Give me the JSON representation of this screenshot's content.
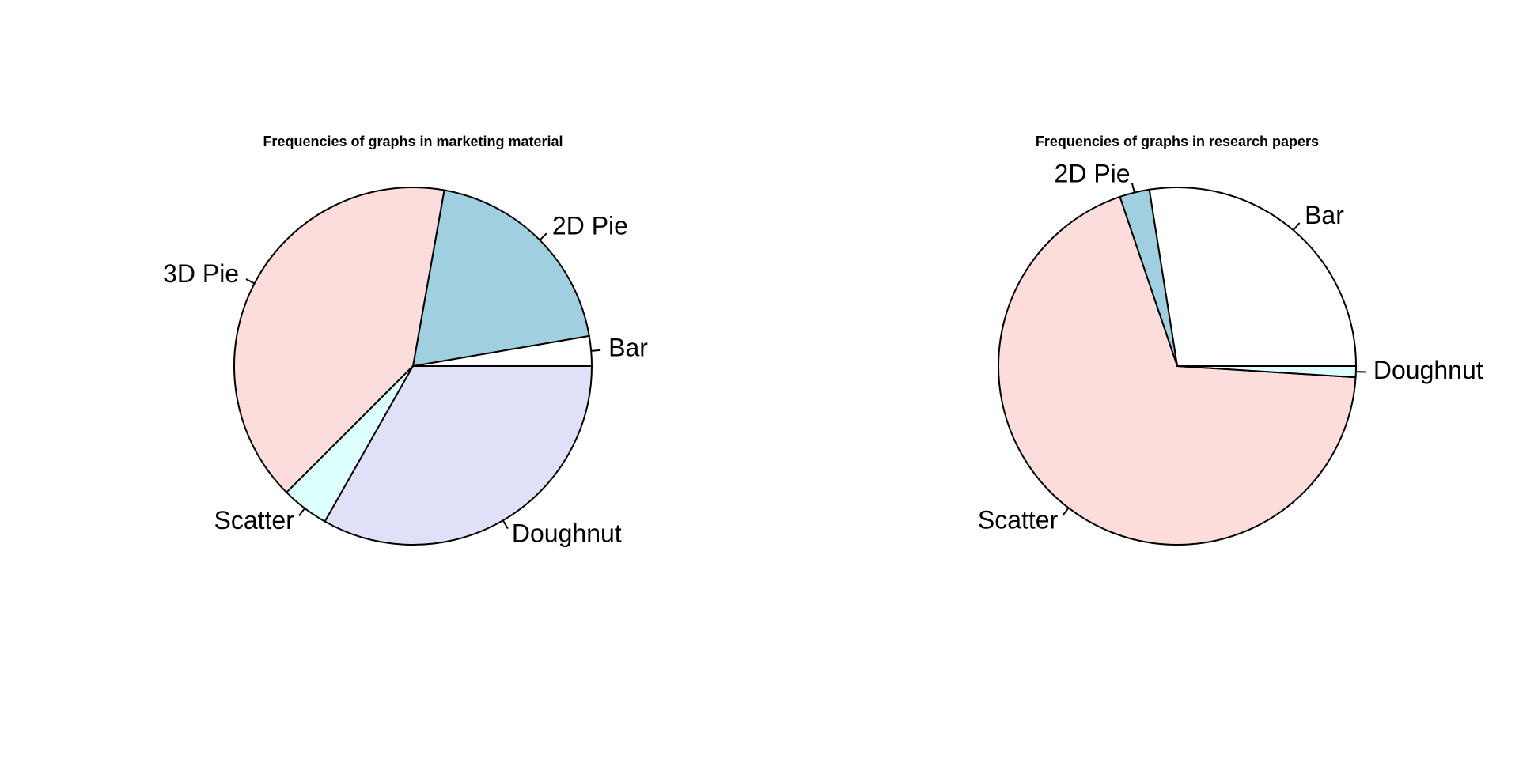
{
  "colors": {
    "Bar": "#FFFFFF",
    "2D Pie": "#A0CFE0",
    "3D Pie": "#FDDDDC",
    "Scatter": "#DDFFFE",
    "Doughnut": "#E0E0F9"
  },
  "chart_data": [
    {
      "type": "pie",
      "title": "Frequencies of graphs in marketing material",
      "start_angle_deg": 0,
      "direction": "counterclockwise",
      "categories": [
        "Bar",
        "2D Pie",
        "3D Pie",
        "Scatter",
        "Doughnut"
      ],
      "values": [
        2.7,
        19.5,
        40.3,
        4.3,
        33.2
      ],
      "colors": [
        "#FFFFFF",
        "#A0CFE0",
        "#FDDDDC",
        "#DDFFFE",
        "#E0E0F9"
      ]
    },
    {
      "type": "pie",
      "title": "Frequencies of graphs in research papers",
      "start_angle_deg": 0,
      "direction": "counterclockwise",
      "categories": [
        "Bar",
        "2D Pie",
        "Scatter",
        "Doughnut"
      ],
      "values": [
        27.5,
        2.7,
        68.8,
        1.0
      ],
      "colors": [
        "#FFFFFF",
        "#A0CFE0",
        "#FDDDDC",
        "#DDFFFE"
      ]
    }
  ]
}
